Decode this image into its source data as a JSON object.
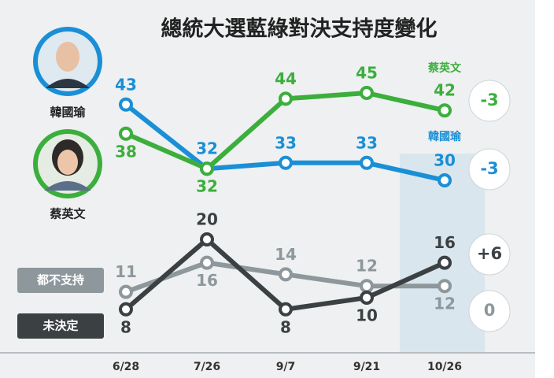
{
  "chart_data": {
    "type": "line",
    "title": "總統大選藍綠對決支持度變化",
    "categories": [
      "6/28",
      "7/26",
      "9/7",
      "9/21",
      "10/26"
    ],
    "series": [
      {
        "name": "韓國瑜",
        "color": "#1a8fd6",
        "values": [
          43,
          32,
          33,
          33,
          30
        ],
        "change": "-3"
      },
      {
        "name": "蔡英文",
        "color": "#3cae3c",
        "values": [
          38,
          32,
          44,
          45,
          42
        ],
        "change": "-3"
      },
      {
        "name": "都不支持",
        "color": "#8d979c",
        "values": [
          11,
          16,
          14,
          12,
          12
        ],
        "change": "0"
      },
      {
        "name": "未決定",
        "color": "#3b4043",
        "values": [
          8,
          20,
          8,
          10,
          16
        ],
        "change": "+6"
      }
    ]
  }
}
